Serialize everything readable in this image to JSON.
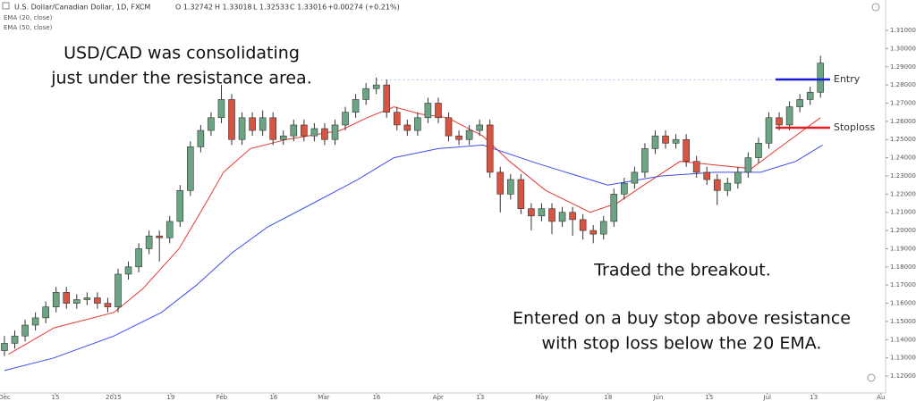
{
  "header": {
    "symbol": "U.S. Dollar/Canadian Dollar, 1D, FXCM",
    "open": "O 1.32742",
    "high": "H 1.33018",
    "low": "L 1.32533",
    "close": "C 1.33016",
    "change": "+0.00274 (+0.21%)",
    "indicators": [
      "EMA (20, close)",
      "EMA (50, close)"
    ]
  },
  "chart_data": {
    "type": "candlestick",
    "up_color": "#6ba583",
    "down_color": "#d75442",
    "ohlc": [
      [
        1.134,
        1.142,
        1.131,
        1.138
      ],
      [
        1.138,
        1.145,
        1.135,
        1.142
      ],
      [
        1.142,
        1.151,
        1.139,
        1.148
      ],
      [
        1.148,
        1.155,
        1.145,
        1.152
      ],
      [
        1.152,
        1.161,
        1.149,
        1.158
      ],
      [
        1.158,
        1.169,
        1.155,
        1.166
      ],
      [
        1.166,
        1.169,
        1.157,
        1.16
      ],
      [
        1.16,
        1.165,
        1.157,
        1.162
      ],
      [
        1.162,
        1.166,
        1.159,
        1.163
      ],
      [
        1.163,
        1.166,
        1.157,
        1.16
      ],
      [
        1.16,
        1.163,
        1.155,
        1.158
      ],
      [
        1.158,
        1.179,
        1.155,
        1.176
      ],
      [
        1.176,
        1.183,
        1.173,
        1.18
      ],
      [
        1.18,
        1.193,
        1.177,
        1.19
      ],
      [
        1.19,
        1.2,
        1.187,
        1.197
      ],
      [
        1.197,
        1.2,
        1.183,
        1.196
      ],
      [
        1.196,
        1.208,
        1.193,
        1.205
      ],
      [
        1.205,
        1.225,
        1.202,
        1.222
      ],
      [
        1.222,
        1.249,
        1.219,
        1.246
      ],
      [
        1.246,
        1.258,
        1.243,
        1.255
      ],
      [
        1.255,
        1.265,
        1.252,
        1.262
      ],
      [
        1.262,
        1.28,
        1.259,
        1.272
      ],
      [
        1.272,
        1.275,
        1.247,
        1.25
      ],
      [
        1.25,
        1.265,
        1.247,
        1.262
      ],
      [
        1.262,
        1.265,
        1.252,
        1.255
      ],
      [
        1.255,
        1.266,
        1.252,
        1.262
      ],
      [
        1.262,
        1.265,
        1.247,
        1.25
      ],
      [
        1.25,
        1.255,
        1.247,
        1.252
      ],
      [
        1.252,
        1.261,
        1.249,
        1.258
      ],
      [
        1.258,
        1.261,
        1.249,
        1.252
      ],
      [
        1.252,
        1.259,
        1.249,
        1.256
      ],
      [
        1.256,
        1.259,
        1.247,
        1.25
      ],
      [
        1.25,
        1.261,
        1.247,
        1.258
      ],
      [
        1.258,
        1.268,
        1.255,
        1.265
      ],
      [
        1.265,
        1.275,
        1.262,
        1.272
      ],
      [
        1.272,
        1.281,
        1.269,
        1.278
      ],
      [
        1.278,
        1.284,
        1.275,
        1.28
      ],
      [
        1.28,
        1.283,
        1.262,
        1.265
      ],
      [
        1.265,
        1.268,
        1.255,
        1.258
      ],
      [
        1.258,
        1.261,
        1.252,
        1.255
      ],
      [
        1.255,
        1.265,
        1.252,
        1.262
      ],
      [
        1.262,
        1.273,
        1.259,
        1.27
      ],
      [
        1.27,
        1.273,
        1.259,
        1.262
      ],
      [
        1.262,
        1.265,
        1.249,
        1.252
      ],
      [
        1.252,
        1.255,
        1.247,
        1.25
      ],
      [
        1.25,
        1.258,
        1.247,
        1.255
      ],
      [
        1.255,
        1.261,
        1.252,
        1.258
      ],
      [
        1.258,
        1.261,
        1.229,
        1.232
      ],
      [
        1.232,
        1.235,
        1.21,
        1.22
      ],
      [
        1.22,
        1.231,
        1.217,
        1.228
      ],
      [
        1.228,
        1.231,
        1.209,
        1.212
      ],
      [
        1.212,
        1.215,
        1.2,
        1.208
      ],
      [
        1.208,
        1.215,
        1.205,
        1.212
      ],
      [
        1.212,
        1.215,
        1.198,
        1.205
      ],
      [
        1.205,
        1.213,
        1.202,
        1.21
      ],
      [
        1.21,
        1.213,
        1.197,
        1.206
      ],
      [
        1.206,
        1.209,
        1.195,
        1.2
      ],
      [
        1.2,
        1.203,
        1.193,
        1.198
      ],
      [
        1.198,
        1.208,
        1.195,
        1.205
      ],
      [
        1.205,
        1.223,
        1.202,
        1.22
      ],
      [
        1.22,
        1.229,
        1.217,
        1.226
      ],
      [
        1.226,
        1.235,
        1.223,
        1.232
      ],
      [
        1.232,
        1.248,
        1.229,
        1.245
      ],
      [
        1.245,
        1.255,
        1.242,
        1.252
      ],
      [
        1.252,
        1.255,
        1.245,
        1.248
      ],
      [
        1.248,
        1.253,
        1.245,
        1.25
      ],
      [
        1.25,
        1.253,
        1.235,
        1.238
      ],
      [
        1.238,
        1.241,
        1.229,
        1.232
      ],
      [
        1.232,
        1.235,
        1.225,
        1.228
      ],
      [
        1.228,
        1.231,
        1.214,
        1.222
      ],
      [
        1.222,
        1.229,
        1.219,
        1.226
      ],
      [
        1.226,
        1.235,
        1.223,
        1.232
      ],
      [
        1.232,
        1.243,
        1.229,
        1.24
      ],
      [
        1.24,
        1.251,
        1.237,
        1.248
      ],
      [
        1.248,
        1.265,
        1.245,
        1.262
      ],
      [
        1.262,
        1.265,
        1.255,
        1.258
      ],
      [
        1.258,
        1.271,
        1.255,
        1.268
      ],
      [
        1.268,
        1.275,
        1.265,
        1.272
      ],
      [
        1.272,
        1.279,
        1.269,
        1.276
      ],
      [
        1.276,
        1.296,
        1.273,
        1.292
      ]
    ],
    "series": [
      {
        "color": "#e53935",
        "x": [
          0.4,
          4.8,
          10.6,
          13.4,
          16.9,
          19.5,
          21.2,
          23.8,
          27.3,
          32.5,
          35.1,
          37.7,
          40.3,
          42.9,
          46.3,
          48.9,
          52.4,
          56.7,
          59.3,
          61.9,
          65.4,
          68.8,
          72.3,
          74.9,
          79
        ],
        "values": [
          1.132,
          1.1465,
          1.155,
          1.168,
          1.19,
          1.215,
          1.232,
          1.245,
          1.25,
          1.255,
          1.262,
          1.268,
          1.264,
          1.262,
          1.252,
          1.238,
          1.222,
          1.21,
          1.215,
          1.225,
          1.238,
          1.236,
          1.234,
          1.245,
          1.262
        ]
      },
      {
        "color": "#3d4ee8",
        "x": [
          0,
          4.8,
          10.6,
          15.2,
          18.6,
          22.1,
          25.5,
          29.9,
          34.2,
          37.7,
          42,
          46.3,
          51.5,
          58.4,
          63.6,
          68.8,
          73.2,
          76.6,
          79.2
        ],
        "values": [
          1.123,
          1.13,
          1.142,
          1.155,
          1.17,
          1.188,
          1.202,
          1.215,
          1.228,
          1.24,
          1.245,
          1.247,
          1.237,
          1.225,
          1.23,
          1.232,
          1.232,
          1.238,
          1.247
        ]
      }
    ],
    "resistance": 1.2828,
    "levels": [
      {
        "label": "Entry",
        "value": 1.283,
        "color": "#1a1adb"
      },
      {
        "label": "Stoploss",
        "value": 1.2565,
        "color": "#e51c1c"
      }
    ],
    "xlim": [
      -0.43,
      85.3
    ],
    "xticks": [
      {
        "value": 0,
        "label": "Dec"
      },
      {
        "value": 4.94,
        "label": "15"
      },
      {
        "value": 10.56,
        "label": "2015"
      },
      {
        "value": 16.1,
        "label": "19"
      },
      {
        "value": 21.04,
        "label": "Feb"
      },
      {
        "value": 26.06,
        "label": "16"
      },
      {
        "value": 30.91,
        "label": "Mar"
      },
      {
        "value": 36.02,
        "label": "16"
      },
      {
        "value": 41.99,
        "label": "Apr"
      },
      {
        "value": 46.06,
        "label": "13"
      },
      {
        "value": 52.03,
        "label": "May"
      },
      {
        "value": 58.44,
        "label": "18"
      },
      {
        "value": 63.29,
        "label": "Jun"
      },
      {
        "value": 68.23,
        "label": "15"
      },
      {
        "value": 73.85,
        "label": "Jul"
      },
      {
        "value": 78.35,
        "label": "13"
      },
      {
        "value": 84.85,
        "label": "Au"
      }
    ],
    "ylim": [
      1.1107,
      1.3267
    ],
    "yticks": [
      {
        "value": 1.12,
        "label": "1.12000"
      },
      {
        "value": 1.13,
        "label": "1.13000"
      },
      {
        "value": 1.14,
        "label": "1.14000"
      },
      {
        "value": 1.15,
        "label": "1.15000"
      },
      {
        "value": 1.16,
        "label": "1.16000"
      },
      {
        "value": 1.17,
        "label": "1.17000"
      },
      {
        "value": 1.18,
        "label": "1.18000"
      },
      {
        "value": 1.19,
        "label": "1.19000"
      },
      {
        "value": 1.2,
        "label": "1.20000"
      },
      {
        "value": 1.21,
        "label": "1.21000"
      },
      {
        "value": 1.22,
        "label": "1.22000"
      },
      {
        "value": 1.23,
        "label": "1.23000"
      },
      {
        "value": 1.24,
        "label": "1.24000"
      },
      {
        "value": 1.25,
        "label": "1.25000"
      },
      {
        "value": 1.26,
        "label": "1.26000"
      },
      {
        "value": 1.27,
        "label": "1.27000"
      },
      {
        "value": 1.28,
        "label": "1.28000"
      },
      {
        "value": 1.29,
        "label": "1.29000"
      },
      {
        "value": 1.3,
        "label": "1.30000"
      },
      {
        "value": 1.31,
        "label": "1.31000"
      }
    ],
    "annotations": [
      [
        "USD/CAD was consolidating",
        "just under the resistance area."
      ],
      [
        "Traded the breakout."
      ],
      [
        "Entered on a buy stop above resistance",
        "with stop loss below the 20 EMA."
      ]
    ]
  }
}
